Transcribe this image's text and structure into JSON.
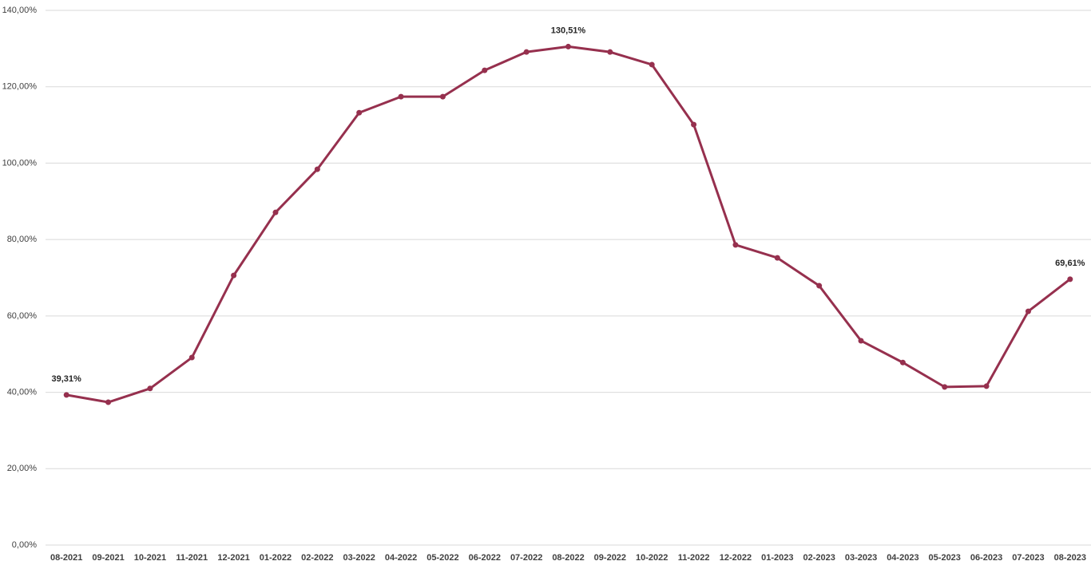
{
  "chart_data": {
    "type": "line",
    "categories": [
      "08-2021",
      "09-2021",
      "10-2021",
      "11-2021",
      "12-2021",
      "01-2022",
      "02-2022",
      "03-2022",
      "04-2022",
      "05-2022",
      "06-2022",
      "07-2022",
      "08-2022",
      "09-2022",
      "10-2022",
      "11-2022",
      "12-2022",
      "01-2023",
      "02-2023",
      "03-2023",
      "04-2023",
      "05-2023",
      "06-2023",
      "07-2023",
      "08-2023"
    ],
    "series": [
      {
        "color": "#96304e",
        "values": [
          39.31,
          37.4,
          41.0,
          49.1,
          70.6,
          87.1,
          98.4,
          113.2,
          117.4,
          117.4,
          124.3,
          129.1,
          130.51,
          129.1,
          125.8,
          110.1,
          78.6,
          75.2,
          67.9,
          53.5,
          47.8,
          41.4,
          41.6,
          61.2,
          69.61
        ],
        "value_labels": [
          "39,31%",
          null,
          null,
          null,
          null,
          null,
          null,
          null,
          null,
          null,
          null,
          null,
          "130,51%",
          null,
          null,
          null,
          null,
          null,
          null,
          null,
          null,
          null,
          null,
          null,
          "69,61%"
        ]
      }
    ],
    "ylim": [
      0,
      140
    ],
    "yticks": [
      {
        "value": 0,
        "label": "0,00%"
      },
      {
        "value": 20,
        "label": "20,00%"
      },
      {
        "value": 40,
        "label": "40,00%"
      },
      {
        "value": 60,
        "label": "60,00%"
      },
      {
        "value": 80,
        "label": "80,00%"
      },
      {
        "value": 100,
        "label": "100,00%"
      },
      {
        "value": 120,
        "label": "120,00%"
      },
      {
        "value": 140,
        "label": "140,00%"
      }
    ],
    "grid": true
  }
}
